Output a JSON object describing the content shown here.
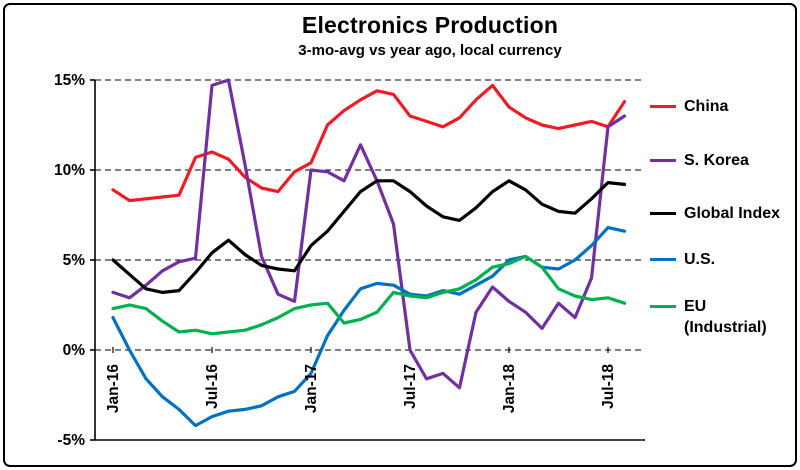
{
  "chart_data": {
    "type": "line",
    "title": "Electronics Production",
    "subtitle": "3-mo-avg vs year ago, local currency",
    "x_unit": "month",
    "x_start": "Jan-16",
    "x_end": "Aug-18",
    "ylim": [
      -5,
      15
    ],
    "grid": "horizontal-dashed",
    "legend_position": "right",
    "background_color": "#ffffff",
    "axis_color": "#000000",
    "y_ticks": [
      {
        "label": "15%",
        "value": 15
      },
      {
        "label": "10%",
        "value": 10
      },
      {
        "label": "5%",
        "value": 5
      },
      {
        "label": "0%",
        "value": 0
      },
      {
        "label": "-5%",
        "value": -5
      }
    ],
    "x_ticks": [
      {
        "label": "Jan-16",
        "month_index": 0
      },
      {
        "label": "Jul-16",
        "month_index": 6
      },
      {
        "label": "Jan-17",
        "month_index": 12
      },
      {
        "label": "Jul-17",
        "month_index": 18
      },
      {
        "label": "Jan-18",
        "month_index": 24
      },
      {
        "label": "Jul-18",
        "month_index": 30
      }
    ],
    "series": [
      {
        "name": "China",
        "legend_label": "China",
        "color": "#ee1c25",
        "values": [
          8.9,
          8.3,
          8.4,
          8.5,
          8.6,
          10.7,
          11.0,
          10.6,
          9.6,
          9.0,
          8.8,
          9.9,
          10.4,
          12.5,
          13.3,
          13.9,
          14.4,
          14.2,
          13.0,
          12.7,
          12.4,
          12.9,
          13.9,
          14.7,
          13.5,
          12.9,
          12.5,
          12.3,
          12.5,
          12.7,
          12.4,
          13.8
        ]
      },
      {
        "name": "S. Korea",
        "legend_label": "S. Korea",
        "color": "#7030a0",
        "values": [
          3.2,
          2.9,
          3.6,
          4.4,
          4.9,
          5.1,
          14.7,
          15.0,
          10.3,
          5.2,
          3.1,
          2.7,
          10.0,
          9.9,
          9.4,
          11.4,
          9.4,
          7.0,
          0.0,
          -1.6,
          -1.3,
          -2.1,
          2.1,
          3.5,
          2.7,
          2.1,
          1.2,
          2.6,
          1.8,
          4.0,
          12.4,
          13.0
        ]
      },
      {
        "name": "Global Index",
        "legend_label": "Global Index",
        "color": "#000000",
        "values": [
          5.0,
          4.2,
          3.4,
          3.2,
          3.3,
          4.3,
          5.4,
          6.1,
          5.3,
          4.7,
          4.5,
          4.4,
          5.8,
          6.6,
          7.7,
          8.8,
          9.4,
          9.4,
          8.8,
          8.0,
          7.4,
          7.2,
          7.9,
          8.8,
          9.4,
          8.9,
          8.1,
          7.7,
          7.6,
          8.4,
          9.3,
          9.2
        ]
      },
      {
        "name": "U.S.",
        "legend_label": "U.S.",
        "color": "#0070c0",
        "values": [
          1.8,
          0.0,
          -1.6,
          -2.6,
          -3.3,
          -4.2,
          -3.7,
          -3.4,
          -3.3,
          -3.1,
          -2.6,
          -2.3,
          -1.3,
          0.8,
          2.2,
          3.4,
          3.7,
          3.6,
          3.1,
          3.0,
          3.3,
          3.1,
          3.6,
          4.1,
          5.0,
          5.2,
          4.6,
          4.5,
          5.0,
          5.8,
          6.8,
          6.6
        ]
      },
      {
        "name": "EU (Industrial)",
        "legend_label": "EU\n(Industrial)",
        "color": "#00b050",
        "values": [
          2.3,
          2.5,
          2.3,
          1.6,
          1.0,
          1.1,
          0.9,
          1.0,
          1.1,
          1.4,
          1.8,
          2.3,
          2.5,
          2.6,
          1.5,
          1.7,
          2.1,
          3.2,
          3.0,
          2.9,
          3.2,
          3.4,
          3.9,
          4.6,
          4.8,
          5.2,
          4.6,
          3.4,
          3.0,
          2.8,
          2.9,
          2.6
        ]
      }
    ]
  }
}
